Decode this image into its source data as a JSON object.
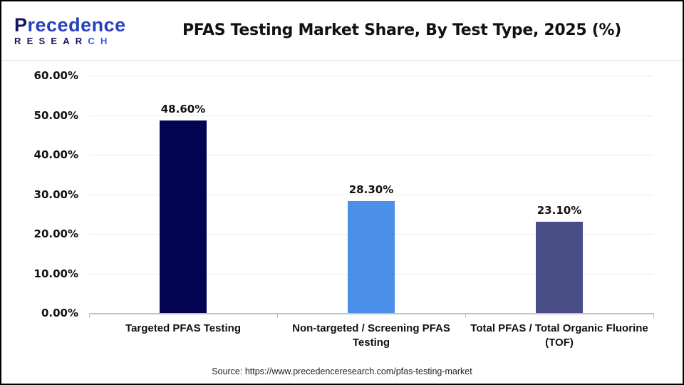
{
  "header": {
    "logo": {
      "line1_first": "P",
      "line1_rest": "recedence",
      "line2_main": "RESEAR",
      "line2_accent": "CH"
    },
    "title": "PFAS Testing Market Share, By Test Type, 2025 (%)"
  },
  "y_ticks": [
    "60.00%",
    "50.00%",
    "40.00%",
    "30.00%",
    "20.00%",
    "10.00%",
    "0.00%"
  ],
  "bars": [
    {
      "category": "Targeted PFAS Testing",
      "value": 48.6,
      "label": "48.60%",
      "color": "#020452"
    },
    {
      "category": "Non-targeted / Screening PFAS Testing",
      "value": 28.3,
      "label": "28.30%",
      "color": "#4a90e8"
    },
    {
      "category": "Total PFAS / Total Organic Fluorine (TOF)",
      "value": 23.1,
      "label": "23.10%",
      "color": "#4a4e86"
    }
  ],
  "source": "Source: https://www.precedenceresearch.com/pfas-testing-market",
  "chart_data": {
    "type": "bar",
    "title": "PFAS Testing Market Share, By Test Type, 2025 (%)",
    "categories": [
      "Targeted PFAS Testing",
      "Non-targeted / Screening PFAS Testing",
      "Total PFAS / Total Organic Fluorine (TOF)"
    ],
    "values": [
      48.6,
      28.3,
      23.1
    ],
    "data_labels": [
      "48.60%",
      "28.30%",
      "23.10%"
    ],
    "colors": [
      "#020452",
      "#4a90e8",
      "#4a4e86"
    ],
    "xlabel": "",
    "ylabel": "",
    "ylim": [
      0,
      60
    ],
    "y_tick_labels": [
      "0.00%",
      "10.00%",
      "20.00%",
      "30.00%",
      "40.00%",
      "50.00%",
      "60.00%"
    ],
    "grid": true,
    "legend": "none",
    "source": "Source: https://www.precedenceresearch.com/pfas-testing-market"
  }
}
